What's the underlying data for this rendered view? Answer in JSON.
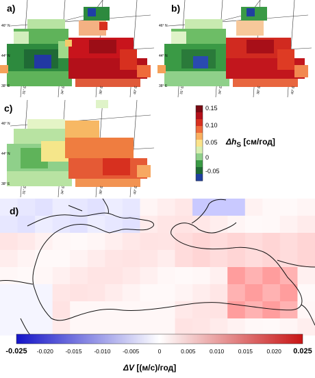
{
  "panels": {
    "a": {
      "label": "a)"
    },
    "b": {
      "label": "b)"
    },
    "c": {
      "label": "c)"
    },
    "d": {
      "label": "d)"
    }
  },
  "map_ticks": {
    "lat": [
      "46° N",
      "44° N",
      "38° E"
    ],
    "lon": [
      "31° E",
      "34° E",
      "38° E",
      "40° E"
    ]
  },
  "colorbar_hs": {
    "title": "Δh",
    "title_sub": "S",
    "unit": " [см/год]",
    "ticks": [
      "0.15",
      "0.10",
      "0.05",
      "0",
      "-0.05"
    ],
    "colors": [
      "#7a0a12",
      "#b3101a",
      "#d7301f",
      "#ef6a3b",
      "#f9b060",
      "#fbe38a",
      "#d8efb0",
      "#8fd08a",
      "#3a9a45",
      "#1e6a34",
      "#2040a0"
    ]
  },
  "colorbar_v": {
    "title": "ΔV",
    "unit": " [(м/с)/год]",
    "ticks": [
      "-0.025",
      "-0.020",
      "-0.015",
      "-0.010",
      "-0.005",
      "0",
      "0.005",
      "0.010",
      "0.015",
      "0.020",
      "0.025"
    ]
  }
}
